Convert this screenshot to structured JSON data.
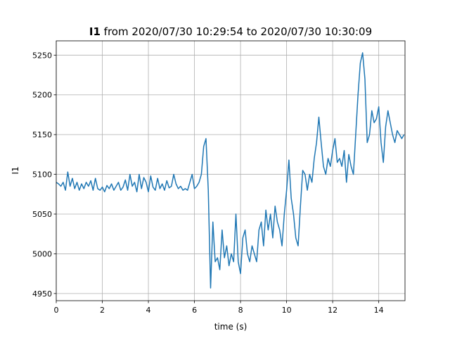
{
  "chart_data": {
    "type": "line",
    "title": {
      "bold": "I1",
      "text": "from 2020/07/30 10:29:54 to 2020/07/30 10:30:09"
    },
    "xlabel": "time (s)",
    "ylabel": "I1",
    "xlim": [
      0,
      15.14
    ],
    "ylim": [
      4941,
      5268
    ],
    "xticks": [
      0,
      2,
      4,
      6,
      8,
      10,
      12,
      14
    ],
    "yticks": [
      4950,
      5000,
      5050,
      5100,
      5150,
      5200,
      5250
    ],
    "grid": true,
    "x": [
      0,
      0.1,
      0.2,
      0.3,
      0.4,
      0.5,
      0.6,
      0.7,
      0.8,
      0.9,
      1,
      1.1,
      1.2,
      1.3,
      1.4,
      1.5,
      1.6,
      1.7,
      1.8,
      1.9,
      2,
      2.1,
      2.2,
      2.3,
      2.4,
      2.5,
      2.6,
      2.7,
      2.8,
      2.9,
      3,
      3.1,
      3.2,
      3.3,
      3.4,
      3.5,
      3.6,
      3.7,
      3.8,
      3.9,
      4,
      4.1,
      4.2,
      4.3,
      4.4,
      4.5,
      4.6,
      4.7,
      4.8,
      4.9,
      5,
      5.1,
      5.2,
      5.3,
      5.4,
      5.5,
      5.6,
      5.7,
      5.8,
      5.9,
      6,
      6.1,
      6.2,
      6.3,
      6.4,
      6.5,
      6.6,
      6.7,
      6.8,
      6.9,
      7,
      7.1,
      7.2,
      7.3,
      7.4,
      7.5,
      7.6,
      7.7,
      7.8,
      7.9,
      8,
      8.1,
      8.2,
      8.3,
      8.4,
      8.5,
      8.6,
      8.7,
      8.8,
      8.9,
      9,
      9.1,
      9.2,
      9.3,
      9.4,
      9.5,
      9.6,
      9.7,
      9.8,
      9.9,
      10,
      10.1,
      10.2,
      10.3,
      10.4,
      10.5,
      10.6,
      10.7,
      10.8,
      10.9,
      11,
      11.1,
      11.2,
      11.3,
      11.4,
      11.5,
      11.6,
      11.7,
      11.8,
      11.9,
      12,
      12.1,
      12.2,
      12.3,
      12.4,
      12.5,
      12.6,
      12.7,
      12.8,
      12.9,
      13,
      13.1,
      13.2,
      13.3,
      13.4,
      13.5,
      13.6,
      13.7,
      13.8,
      13.9,
      14,
      14.1,
      14.2,
      14.3,
      14.4,
      14.5,
      14.6,
      14.7,
      14.8,
      14.9,
      15,
      15.1
    ],
    "series": [
      {
        "name": "I1",
        "color": "#1f77b4",
        "values": [
          5090,
          5088,
          5085,
          5090,
          5080,
          5103,
          5085,
          5095,
          5082,
          5090,
          5080,
          5088,
          5082,
          5090,
          5085,
          5092,
          5080,
          5095,
          5082,
          5080,
          5084,
          5078,
          5086,
          5082,
          5088,
          5080,
          5085,
          5090,
          5080,
          5084,
          5093,
          5080,
          5100,
          5085,
          5090,
          5078,
          5100,
          5082,
          5096,
          5090,
          5078,
          5098,
          5084,
          5080,
          5095,
          5082,
          5088,
          5080,
          5092,
          5083,
          5085,
          5100,
          5088,
          5082,
          5085,
          5080,
          5082,
          5080,
          5090,
          5100,
          5082,
          5085,
          5090,
          5100,
          5135,
          5145,
          5080,
          4957,
          5040,
          4990,
          4995,
          4980,
          5030,
          4995,
          5010,
          4985,
          5000,
          4990,
          5050,
          4990,
          4975,
          5020,
          5030,
          5000,
          4990,
          5010,
          5000,
          4990,
          5030,
          5040,
          5010,
          5055,
          5030,
          5050,
          5020,
          5060,
          5040,
          5030,
          5010,
          5050,
          5080,
          5118,
          5070,
          5050,
          5020,
          5010,
          5060,
          5105,
          5100,
          5080,
          5100,
          5090,
          5120,
          5140,
          5172,
          5140,
          5110,
          5100,
          5120,
          5110,
          5130,
          5145,
          5115,
          5120,
          5110,
          5130,
          5090,
          5125,
          5110,
          5100,
          5150,
          5200,
          5240,
          5253,
          5220,
          5140,
          5150,
          5180,
          5165,
          5170,
          5185,
          5140,
          5115,
          5160,
          5180,
          5165,
          5150,
          5140,
          5155,
          5150,
          5145,
          5150
        ]
      }
    ]
  }
}
